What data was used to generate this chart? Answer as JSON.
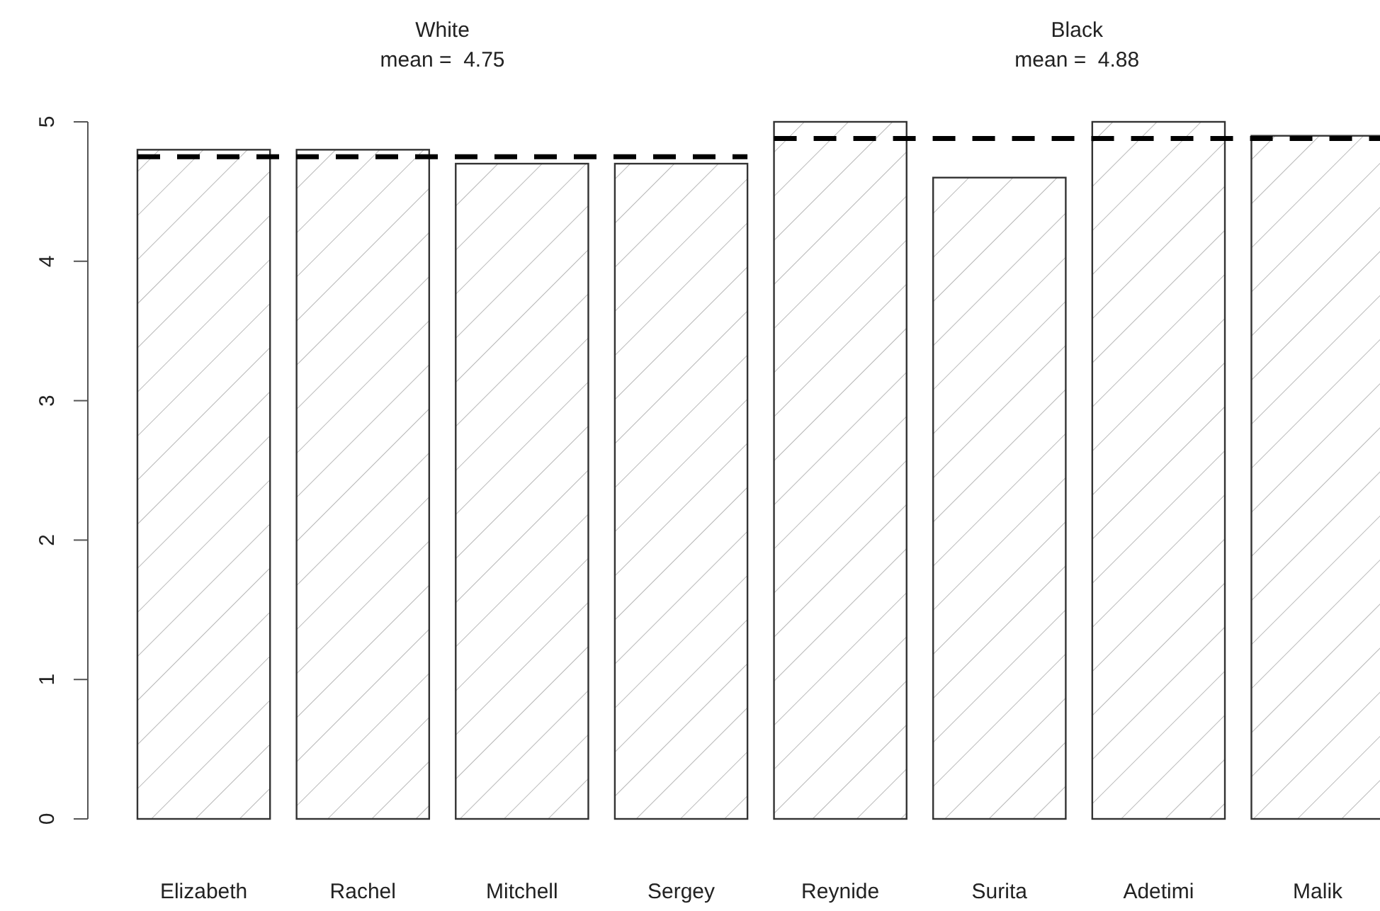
{
  "chart_data": {
    "type": "bar",
    "categories": [
      "Elizabeth",
      "Rachel",
      "Mitchell",
      "Sergey",
      "Reynide",
      "Surita",
      "Adetimi",
      "Malik"
    ],
    "values": [
      4.8,
      4.8,
      4.7,
      4.7,
      5.0,
      4.6,
      5.0,
      4.9
    ],
    "color": "#333333",
    "annotations": [
      "White\nmean =  4.75",
      "Black\nmean =  4.88"
    ],
    "ylim": [
      0,
      5
    ],
    "yticks": [
      0,
      1,
      2,
      3,
      4,
      5
    ],
    "grid": false,
    "ref_lines": [
      {
        "axis": "y",
        "value": 4.75,
        "color": "#000000",
        "line_style": "dashed"
      },
      {
        "axis": "y",
        "value": 4.88,
        "color": "#000000",
        "line_style": "dashed"
      }
    ]
  }
}
